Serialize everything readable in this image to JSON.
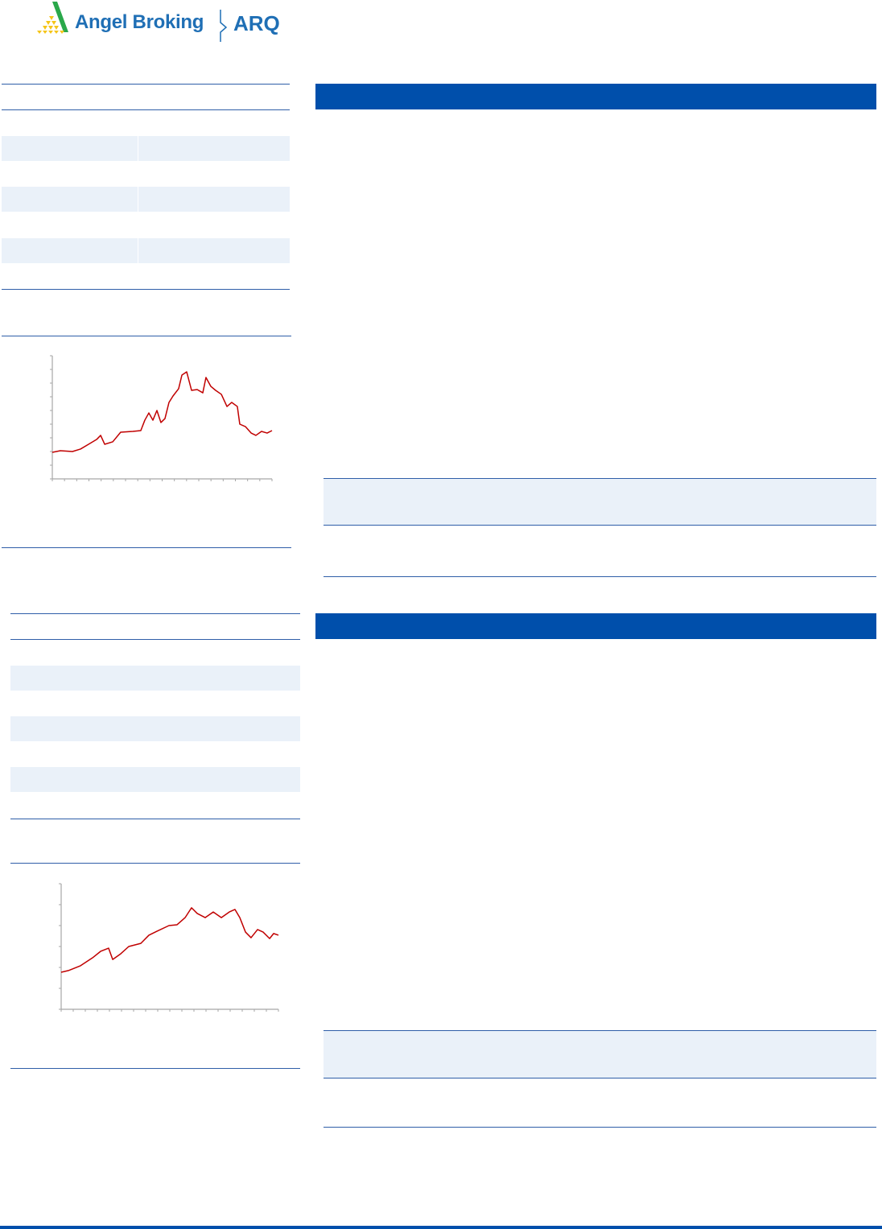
{
  "header": {
    "logo_brand": "Angel Broking",
    "logo_sub": "ARQ",
    "colors": {
      "brand_blue": "#1f6fb5",
      "logo_green": "#2aa84a",
      "logo_yellow": "#f5c518"
    }
  },
  "colors": {
    "section_bar": "#004fab",
    "rule": "#2f5ea8",
    "stripe": "#eaf1f9",
    "chart_line": "#c00000",
    "axis": "#a6a6a6"
  },
  "chart_data": [
    {
      "type": "line",
      "title": "",
      "xlabel": "",
      "ylabel": "",
      "grid": false,
      "xlim": [
        0,
        18
      ],
      "ylim": [
        0,
        9
      ],
      "series": [
        {
          "color": "#c00000",
          "points": [
            [
              0,
              1.94
            ],
            [
              0.66,
              2.06
            ],
            [
              1.65,
              2.0
            ],
            [
              2.31,
              2.18
            ],
            [
              2.97,
              2.53
            ],
            [
              3.63,
              2.88
            ],
            [
              3.96,
              3.18
            ],
            [
              4.29,
              2.53
            ],
            [
              4.95,
              2.71
            ],
            [
              5.6,
              3.41
            ],
            [
              6.59,
              3.47
            ],
            [
              7.25,
              3.53
            ],
            [
              7.58,
              4.29
            ],
            [
              7.91,
              4.82
            ],
            [
              8.24,
              4.29
            ],
            [
              8.57,
              5.0
            ],
            [
              8.9,
              4.12
            ],
            [
              9.23,
              4.41
            ],
            [
              9.56,
              5.59
            ],
            [
              9.89,
              6.06
            ],
            [
              10.35,
              6.59
            ],
            [
              10.62,
              7.59
            ],
            [
              11.01,
              7.82
            ],
            [
              11.41,
              6.47
            ],
            [
              11.87,
              6.53
            ],
            [
              12.33,
              6.29
            ],
            [
              12.59,
              7.41
            ],
            [
              12.99,
              6.76
            ],
            [
              13.38,
              6.47
            ],
            [
              13.85,
              6.18
            ],
            [
              14.31,
              5.29
            ],
            [
              14.7,
              5.59
            ],
            [
              15.16,
              5.29
            ],
            [
              15.36,
              4.0
            ],
            [
              15.82,
              3.82
            ],
            [
              16.29,
              3.35
            ],
            [
              16.68,
              3.18
            ],
            [
              17.14,
              3.47
            ],
            [
              17.6,
              3.35
            ],
            [
              18.0,
              3.53
            ]
          ]
        }
      ]
    },
    {
      "type": "line",
      "title": "",
      "xlabel": "",
      "ylabel": "",
      "grid": false,
      "xlim": [
        0,
        18
      ],
      "ylim": [
        0,
        6
      ],
      "series": [
        {
          "color": "#c00000",
          "points": [
            [
              0,
              1.77
            ],
            [
              0.6,
              1.85
            ],
            [
              1.6,
              2.08
            ],
            [
              2.6,
              2.46
            ],
            [
              3.27,
              2.77
            ],
            [
              3.93,
              2.92
            ],
            [
              4.27,
              2.38
            ],
            [
              4.93,
              2.65
            ],
            [
              5.6,
              3.0
            ],
            [
              6.6,
              3.15
            ],
            [
              7.27,
              3.54
            ],
            [
              7.93,
              3.73
            ],
            [
              8.93,
              4.0
            ],
            [
              9.6,
              4.04
            ],
            [
              10.27,
              4.38
            ],
            [
              10.8,
              4.85
            ],
            [
              11.27,
              4.58
            ],
            [
              11.93,
              4.38
            ],
            [
              12.6,
              4.65
            ],
            [
              13.27,
              4.38
            ],
            [
              13.93,
              4.65
            ],
            [
              14.4,
              4.77
            ],
            [
              14.8,
              4.38
            ],
            [
              15.27,
              3.69
            ],
            [
              15.73,
              3.42
            ],
            [
              16.27,
              3.81
            ],
            [
              16.73,
              3.69
            ],
            [
              17.27,
              3.38
            ],
            [
              17.6,
              3.62
            ],
            [
              18.0,
              3.54
            ]
          ]
        }
      ]
    }
  ]
}
